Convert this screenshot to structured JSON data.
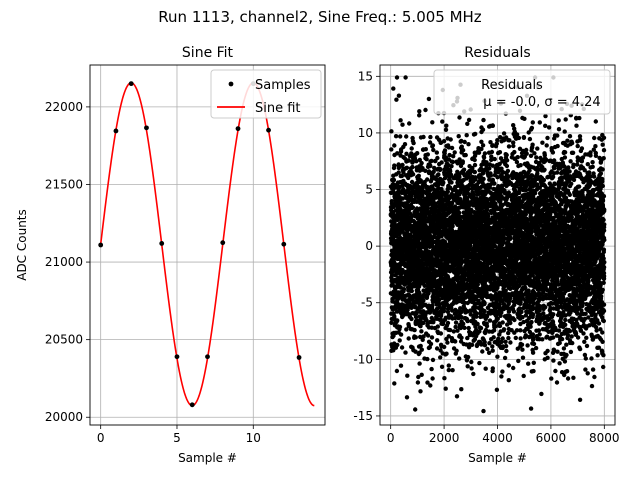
{
  "figure": {
    "suptitle": "Run 1113, channel2, Sine Freq.: 5.005 MHz"
  },
  "chart_data": [
    {
      "type": "line",
      "title": "Sine Fit",
      "xlabel": "Sample #",
      "ylabel": "ADC Counts",
      "xlim": [
        -0.7,
        14.7
      ],
      "ylim": [
        19950,
        22270
      ],
      "xticks": [
        0,
        5,
        10
      ],
      "yticks": [
        20000,
        20500,
        21000,
        21500,
        22000
      ],
      "grid": true,
      "legend_position": "top-right",
      "series": [
        {
          "name": "Samples",
          "style": "markers",
          "color": "#000000",
          "x": [
            0,
            1,
            2,
            3,
            4,
            5,
            6,
            7,
            8,
            9,
            10,
            11,
            12,
            13
          ],
          "y": [
            21110,
            21845,
            22150,
            21865,
            21120,
            20390,
            20080,
            20390,
            21125,
            21860,
            22150,
            21850,
            21115,
            20385
          ]
        },
        {
          "name": "Sine fit",
          "style": "line",
          "color": "#ff0000",
          "function": {
            "offset": 21115,
            "amplitude": 1040,
            "period": 8.0,
            "phase_x": 0,
            "x_start": 0,
            "x_end": 14
          }
        }
      ]
    },
    {
      "type": "scatter",
      "title": "Residuals",
      "xlabel": "Sample #",
      "ylabel": "",
      "xlim": [
        -400,
        8400
      ],
      "ylim": [
        -15.8,
        16.0
      ],
      "xticks": [
        0,
        2000,
        4000,
        6000,
        8000
      ],
      "yticks": [
        -15,
        -10,
        -5,
        0,
        5,
        10,
        15
      ],
      "grid": true,
      "legend_position": "top-right",
      "series": [
        {
          "name": "Residuals",
          "color": "#000000",
          "n_points": 8000,
          "mean": -0.0,
          "sigma": 4.24,
          "x_range": [
            0,
            8000
          ]
        }
      ],
      "legend_text": {
        "line1": "Residuals",
        "line2": "μ = -0.0, σ = 4.24"
      }
    }
  ]
}
